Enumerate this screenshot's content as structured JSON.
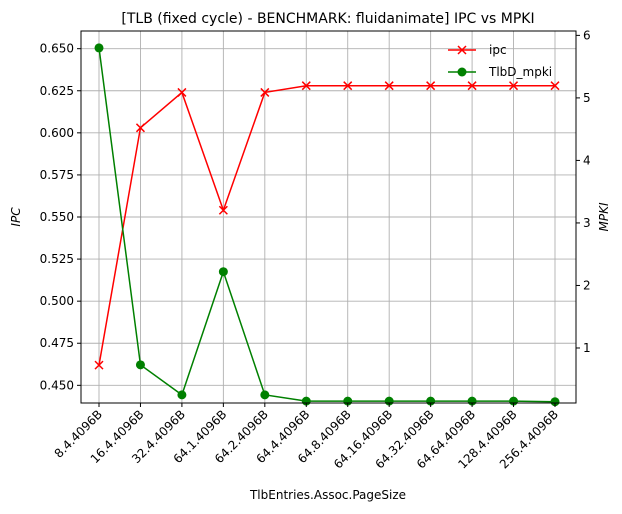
{
  "chart_data": {
    "type": "line",
    "title": "[TLB (fixed cycle) - BENCHMARK: fluidanimate]  IPC vs MPKI",
    "xlabel": "TlbEntries.Assoc.PageSize",
    "ylabel_left": "IPC",
    "ylabel_right": "MPKI",
    "categories": [
      "8.4.4096B",
      "16.4.4096B",
      "32.4.4096B",
      "64.1.4096B",
      "64.2.4096B",
      "64.4.4096B",
      "64.8.4096B",
      "64.16.4096B",
      "64.32.4096B",
      "64.64.4096B",
      "128.4.4096B",
      "256.4.4096B"
    ],
    "ylim_left": [
      0.4395,
      0.6605
    ],
    "ylim_right": [
      0.12,
      6.07
    ],
    "yticks_left": [
      "0.450",
      "0.475",
      "0.500",
      "0.525",
      "0.550",
      "0.575",
      "0.600",
      "0.625",
      "0.650"
    ],
    "yticks_right": [
      "1",
      "2",
      "3",
      "4",
      "5",
      "6"
    ],
    "grid": true,
    "legend_position": "top-right",
    "series": [
      {
        "name": "ipc",
        "axis": "left",
        "color": "#ff0000",
        "marker": "x",
        "values": [
          0.462,
          0.603,
          0.624,
          0.554,
          0.624,
          0.628,
          0.628,
          0.628,
          0.628,
          0.628,
          0.628,
          0.628
        ]
      },
      {
        "name": "TlbD_mpki",
        "axis": "right",
        "color": "#008000",
        "marker": "o",
        "values": [
          5.8,
          0.73,
          0.25,
          2.22,
          0.25,
          0.15,
          0.15,
          0.15,
          0.15,
          0.15,
          0.15,
          0.14
        ]
      }
    ]
  }
}
